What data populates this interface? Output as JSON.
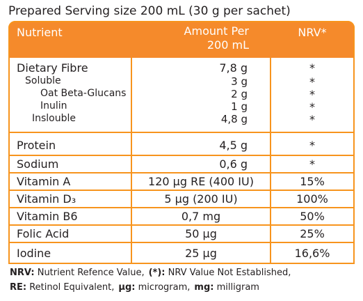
{
  "header": {
    "title": "Prepared Serving size 200 mL (30 g per sachet)"
  },
  "table": {
    "columns": [
      "Nutrient",
      [
        "Amount Per",
        "200 mL"
      ],
      "NRV*"
    ],
    "fibre": {
      "nutrient": "Dietary Fibre",
      "amount": "7,8 g",
      "nrv": "*",
      "soluble": {
        "nutrient": "Soluble",
        "amount": "3 g",
        "nrv": "*",
        "parts": [
          {
            "nutrient": "Oat Beta-Glucans",
            "amount": "2 g",
            "nrv": "*"
          },
          {
            "nutrient": "Inulin",
            "amount": "1 g",
            "nrv": "*"
          }
        ]
      },
      "insoluble": {
        "nutrient": "Inslouble",
        "amount": "4,8 g",
        "nrv": "*"
      }
    },
    "rows": [
      {
        "nutrient": "Protein",
        "amount": "4,5 g",
        "nrv": "*"
      },
      {
        "nutrient": "Sodium",
        "amount": "0,6 g",
        "nrv": "*"
      },
      {
        "nutrient": "Vitamin A",
        "amount": "120 µg RE (400 IU)",
        "nrv": "15%"
      },
      {
        "nutrient": "Vitamin D₃",
        "amount": "5 µg (200 IU)",
        "nrv": "100%"
      },
      {
        "nutrient": "Vitamin B6",
        "amount": "0,7 mg",
        "nrv": "50%"
      },
      {
        "nutrient": "Folic Acid",
        "amount": "50 µg",
        "nrv": "25%"
      },
      {
        "nutrient": "Iodine",
        "amount": "25 µg",
        "nrv": "16,6%"
      }
    ]
  },
  "footnotes": [
    [
      {
        "abbr": "NRV:",
        "meaning": "Nutrient Refence Value,"
      },
      {
        "abbr": "(*):",
        "meaning": "NRV Value Not Established,"
      }
    ],
    [
      {
        "abbr": "RE:",
        "meaning": "Retinol Equivalent,"
      },
      {
        "abbr": "µg:",
        "meaning": "microgram,"
      },
      {
        "abbr": "mg:",
        "meaning": "milligram"
      }
    ]
  ]
}
